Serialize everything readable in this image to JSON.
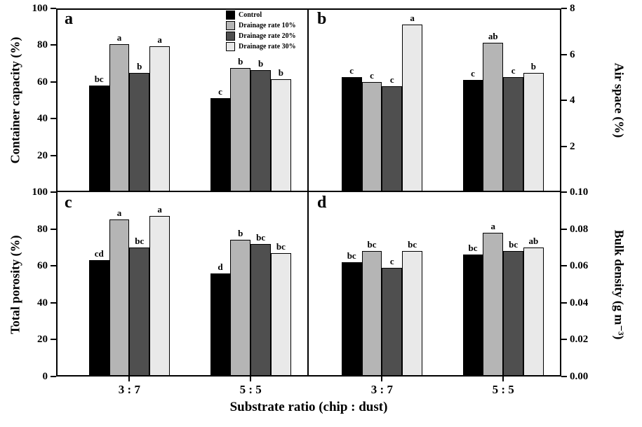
{
  "figure": {
    "xlabel": "Substrate ratio (chip : dust)",
    "categories": [
      "3 : 7",
      "5 : 5"
    ],
    "background": "#ffffff",
    "axis_color": "#000000",
    "legend": [
      {
        "label": "Control",
        "color": "#000000"
      },
      {
        "label": "Drainage rate 10%",
        "color": "#b5b5b5"
      },
      {
        "label": "Drainage rate 20%",
        "color": "#4f4f4f"
      },
      {
        "label": "Drainage rate 30%",
        "color": "#e9e9e9"
      }
    ]
  },
  "chart_data": [
    {
      "type": "bar",
      "panel": "a",
      "ylabel": "Container capacity (%)",
      "axis_side": "left",
      "ylim": [
        0,
        100
      ],
      "yticks": [
        {
          "v": 20,
          "label": "20"
        },
        {
          "v": 40,
          "label": "40"
        },
        {
          "v": 60,
          "label": "60"
        },
        {
          "v": 80,
          "label": "80"
        },
        {
          "v": 100,
          "label": "100"
        }
      ],
      "categories": [
        "3 : 7",
        "5 : 5"
      ],
      "series": [
        {
          "name": "Control",
          "values": [
            58,
            51
          ],
          "letters": [
            "bc",
            "c"
          ]
        },
        {
          "name": "Drainage rate 10%",
          "values": [
            80.5,
            67.5
          ],
          "letters": [
            "a",
            "b"
          ]
        },
        {
          "name": "Drainage rate 20%",
          "values": [
            65,
            66.5
          ],
          "letters": [
            "b",
            "b"
          ]
        },
        {
          "name": "Drainage rate 30%",
          "values": [
            79.5,
            61.5
          ],
          "letters": [
            "a",
            "b"
          ]
        }
      ]
    },
    {
      "type": "bar",
      "panel": "b",
      "ylabel": "Air space (%)",
      "axis_side": "right",
      "ylim": [
        0,
        8
      ],
      "yticks": [
        {
          "v": 2,
          "label": "2"
        },
        {
          "v": 4,
          "label": "4"
        },
        {
          "v": 6,
          "label": "6"
        },
        {
          "v": 8,
          "label": "8"
        }
      ],
      "categories": [
        "3 : 7",
        "5 : 5"
      ],
      "series": [
        {
          "name": "Control",
          "values": [
            5.0,
            4.9
          ],
          "letters": [
            "c",
            "c"
          ]
        },
        {
          "name": "Drainage rate 10%",
          "values": [
            4.8,
            6.5
          ],
          "letters": [
            "c",
            "ab"
          ]
        },
        {
          "name": "Drainage rate 20%",
          "values": [
            4.6,
            5.0
          ],
          "letters": [
            "c",
            "c"
          ]
        },
        {
          "name": "Drainage rate 30%",
          "values": [
            7.3,
            5.2
          ],
          "letters": [
            "a",
            "b"
          ]
        }
      ]
    },
    {
      "type": "bar",
      "panel": "c",
      "ylabel": "Total porosity (%)",
      "axis_side": "left",
      "ylim": [
        0,
        100
      ],
      "yticks": [
        {
          "v": 0,
          "label": "0"
        },
        {
          "v": 20,
          "label": "20"
        },
        {
          "v": 40,
          "label": "40"
        },
        {
          "v": 60,
          "label": "60"
        },
        {
          "v": 80,
          "label": "80"
        },
        {
          "v": 100,
          "label": "100"
        }
      ],
      "categories": [
        "3 : 7",
        "5 : 5"
      ],
      "series": [
        {
          "name": "Control",
          "values": [
            63,
            56
          ],
          "letters": [
            "cd",
            "d"
          ]
        },
        {
          "name": "Drainage rate 10%",
          "values": [
            85,
            74
          ],
          "letters": [
            "a",
            "b"
          ]
        },
        {
          "name": "Drainage rate 20%",
          "values": [
            70,
            72
          ],
          "letters": [
            "bc",
            "bc"
          ]
        },
        {
          "name": "Drainage rate 30%",
          "values": [
            87,
            67
          ],
          "letters": [
            "a",
            "bc"
          ]
        }
      ]
    },
    {
      "type": "bar",
      "panel": "d",
      "ylabel": "Bulk density (g m⁻³)",
      "axis_side": "right",
      "ylim": [
        0,
        0.1
      ],
      "yticks": [
        {
          "v": 0,
          "label": "0.00"
        },
        {
          "v": 0.02,
          "label": "0.02"
        },
        {
          "v": 0.04,
          "label": "0.04"
        },
        {
          "v": 0.06,
          "label": "0.06"
        },
        {
          "v": 0.08,
          "label": "0.08"
        },
        {
          "v": 0.1,
          "label": "0.10"
        }
      ],
      "categories": [
        "3 : 7",
        "5 : 5"
      ],
      "series": [
        {
          "name": "Control",
          "values": [
            0.062,
            0.066
          ],
          "letters": [
            "bc",
            "bc"
          ]
        },
        {
          "name": "Drainage rate 10%",
          "values": [
            0.068,
            0.078
          ],
          "letters": [
            "bc",
            "a"
          ]
        },
        {
          "name": "Drainage rate 20%",
          "values": [
            0.059,
            0.068
          ],
          "letters": [
            "c",
            "bc"
          ]
        },
        {
          "name": "Drainage rate 30%",
          "values": [
            0.068,
            0.07
          ],
          "letters": [
            "bc",
            "ab"
          ]
        }
      ]
    }
  ]
}
